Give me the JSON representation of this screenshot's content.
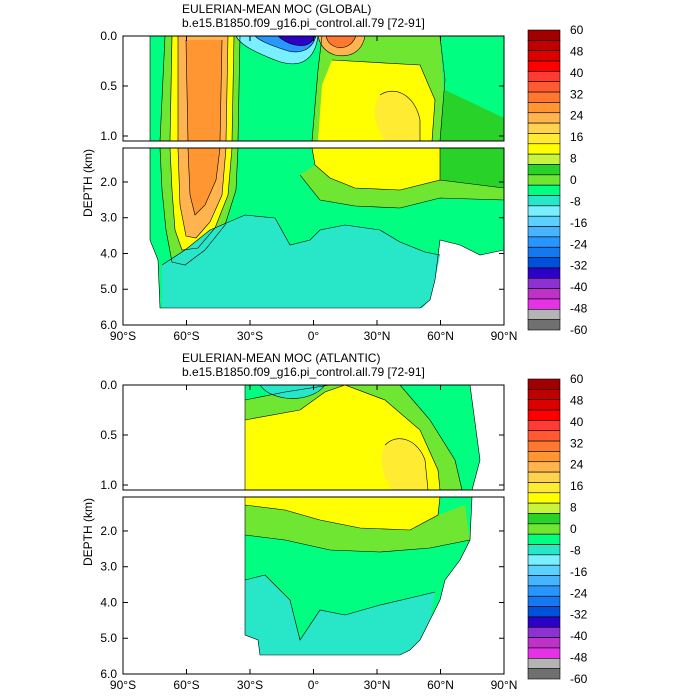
{
  "chart_data": [
    {
      "type": "heatmap",
      "title": "EULERIAN-MEAN MOC (GLOBAL)",
      "subtitle": "b.e15.B1850.f09_g16.pi_control.all.79 [72-91]",
      "ylabel": "DEPTH (km)",
      "x_ticks": [
        "90°S",
        "60°S",
        "30°S",
        "0°",
        "30°N",
        "60°N",
        "90°N"
      ],
      "x_tick_values": [
        -90,
        -60,
        -30,
        0,
        30,
        60,
        90
      ],
      "upper_y_ticks": [
        "0.0",
        "0.5",
        "1.0"
      ],
      "upper_y_tick_values": [
        0,
        0.5,
        1.0
      ],
      "lower_y_ticks": [
        "2.0",
        "3.0",
        "4.0",
        "5.0",
        "6.0"
      ],
      "lower_y_tick_values": [
        2,
        3,
        4,
        5,
        6
      ],
      "xlim": [
        -90,
        90
      ],
      "upper_ylim": [
        0,
        1.05
      ],
      "lower_ylim": [
        1.05,
        6
      ],
      "colorbar_labels": [
        "60",
        "48",
        "40",
        "32",
        "24",
        "16",
        "8",
        "0",
        "-8",
        "-16",
        "-24",
        "-32",
        "-40",
        "-48",
        "-60"
      ],
      "features": [
        {
          "kind": "cell",
          "sign": "positive",
          "lat_range": [
            -65,
            -35
          ],
          "depth_range": [
            0,
            4.4
          ],
          "peak": 36
        },
        {
          "kind": "cell",
          "sign": "positive",
          "lat_range": [
            0,
            58
          ],
          "depth_range": [
            0,
            2.0
          ],
          "peak": 20
        },
        {
          "kind": "cell",
          "sign": "negative",
          "lat_range": [
            -28,
            -2
          ],
          "depth_range": [
            0,
            0.15
          ],
          "peak": -50
        },
        {
          "kind": "cell",
          "sign": "positive",
          "lat_range": [
            2,
            20
          ],
          "depth_range": [
            0,
            0.15
          ],
          "peak": 40
        },
        {
          "kind": "cell",
          "sign": "negative",
          "lat_range": [
            -60,
            60
          ],
          "depth_range": [
            3.5,
            5.5
          ],
          "peak": -4
        }
      ]
    },
    {
      "type": "heatmap",
      "title": "EULERIAN-MEAN MOC (ATLANTIC)",
      "subtitle": "b.e15.B1850.f09_g16.pi_control.all.79 [72-91]",
      "ylabel": "DEPTH (km)",
      "x_ticks": [
        "90°S",
        "60°S",
        "30°S",
        "0°",
        "30°N",
        "60°N",
        "90°N"
      ],
      "x_tick_values": [
        -90,
        -60,
        -30,
        0,
        30,
        60,
        90
      ],
      "upper_y_ticks": [
        "0.0",
        "0.5",
        "1.0"
      ],
      "upper_y_tick_values": [
        0,
        0.5,
        1.0
      ],
      "lower_y_ticks": [
        "2.0",
        "3.0",
        "4.0",
        "5.0",
        "6.0"
      ],
      "lower_y_tick_values": [
        2,
        3,
        4,
        5,
        6
      ],
      "xlim": [
        -90,
        90
      ],
      "upper_ylim": [
        0,
        1.05
      ],
      "lower_ylim": [
        1.05,
        6
      ],
      "colorbar_labels": [
        "60",
        "48",
        "40",
        "32",
        "24",
        "16",
        "8",
        "0",
        "-8",
        "-16",
        "-24",
        "-32",
        "-40",
        "-48",
        "-60"
      ],
      "features": [
        {
          "kind": "cell",
          "sign": "positive",
          "lat_range": [
            -32,
            62
          ],
          "depth_range": [
            0,
            2.2
          ],
          "peak": 20
        },
        {
          "kind": "cell",
          "sign": "negative",
          "lat_range": [
            -32,
            60
          ],
          "depth_range": [
            3.0,
            5.5
          ],
          "peak": -4
        }
      ]
    }
  ],
  "colors": {
    "scale": [
      "#707070",
      "#b4b4b4",
      "#e632e6",
      "#be32c8",
      "#8c32d2",
      "#2d00c8",
      "#0050dc",
      "#1478f0",
      "#2896ff",
      "#46b4ff",
      "#5ad2ff",
      "#78f0ff",
      "#28e6c8",
      "#00ff80",
      "#6ee632",
      "#28d228",
      "#c8f53c",
      "#ffff00",
      "#ffeb32",
      "#ffd250",
      "#ffb450",
      "#ff9632",
      "#ff7832",
      "#ff5a32",
      "#ff3c32",
      "#ff0000",
      "#dc0000",
      "#be0000",
      "#a00000"
    ]
  }
}
